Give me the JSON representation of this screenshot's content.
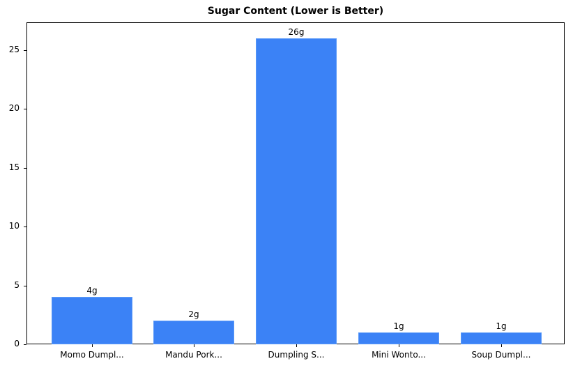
{
  "chart_data": {
    "type": "bar",
    "title": "Sugar Content (Lower is Better)",
    "xlabel": "",
    "ylabel": "",
    "categories": [
      "Momo Dumpl...",
      "Mandu Pork...",
      "Dumpling S...",
      "Mini Wonto...",
      "Soup Dumpl..."
    ],
    "values": [
      4,
      2,
      26,
      1,
      1
    ],
    "value_labels": [
      "4g",
      "2g",
      "26g",
      "1g",
      "1g"
    ],
    "ylim": [
      0,
      27.3
    ],
    "yticks": [
      0,
      5,
      10,
      15,
      20,
      25
    ],
    "ytick_labels": [
      "0",
      "5",
      "10",
      "15",
      "20",
      "25"
    ],
    "grid": false,
    "legend": null,
    "bar_color": "#3b82f6"
  }
}
